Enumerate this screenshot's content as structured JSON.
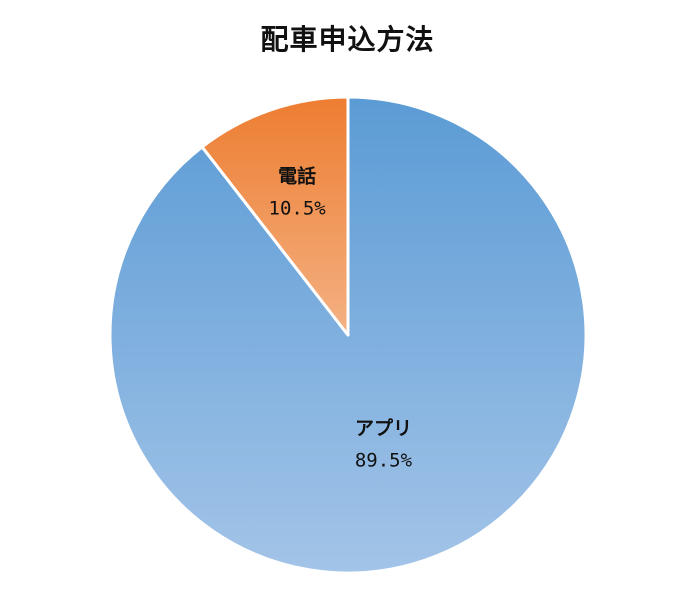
{
  "chart_data": {
    "type": "pie",
    "title": "配車申込方法",
    "slices": [
      {
        "label": "アプリ",
        "value": 89.5,
        "value_text": "89.5%",
        "color_top": "#5b9bd5",
        "color_bottom": "#a3c4e8"
      },
      {
        "label": "電話",
        "value": 10.5,
        "value_text": "10.5%",
        "color_top": "#ed7d31",
        "color_bottom": "#f4b183"
      }
    ],
    "start": "12 o'clock",
    "direction": "clockwise",
    "legend": "none",
    "slice_border_color": "#ffffff"
  }
}
